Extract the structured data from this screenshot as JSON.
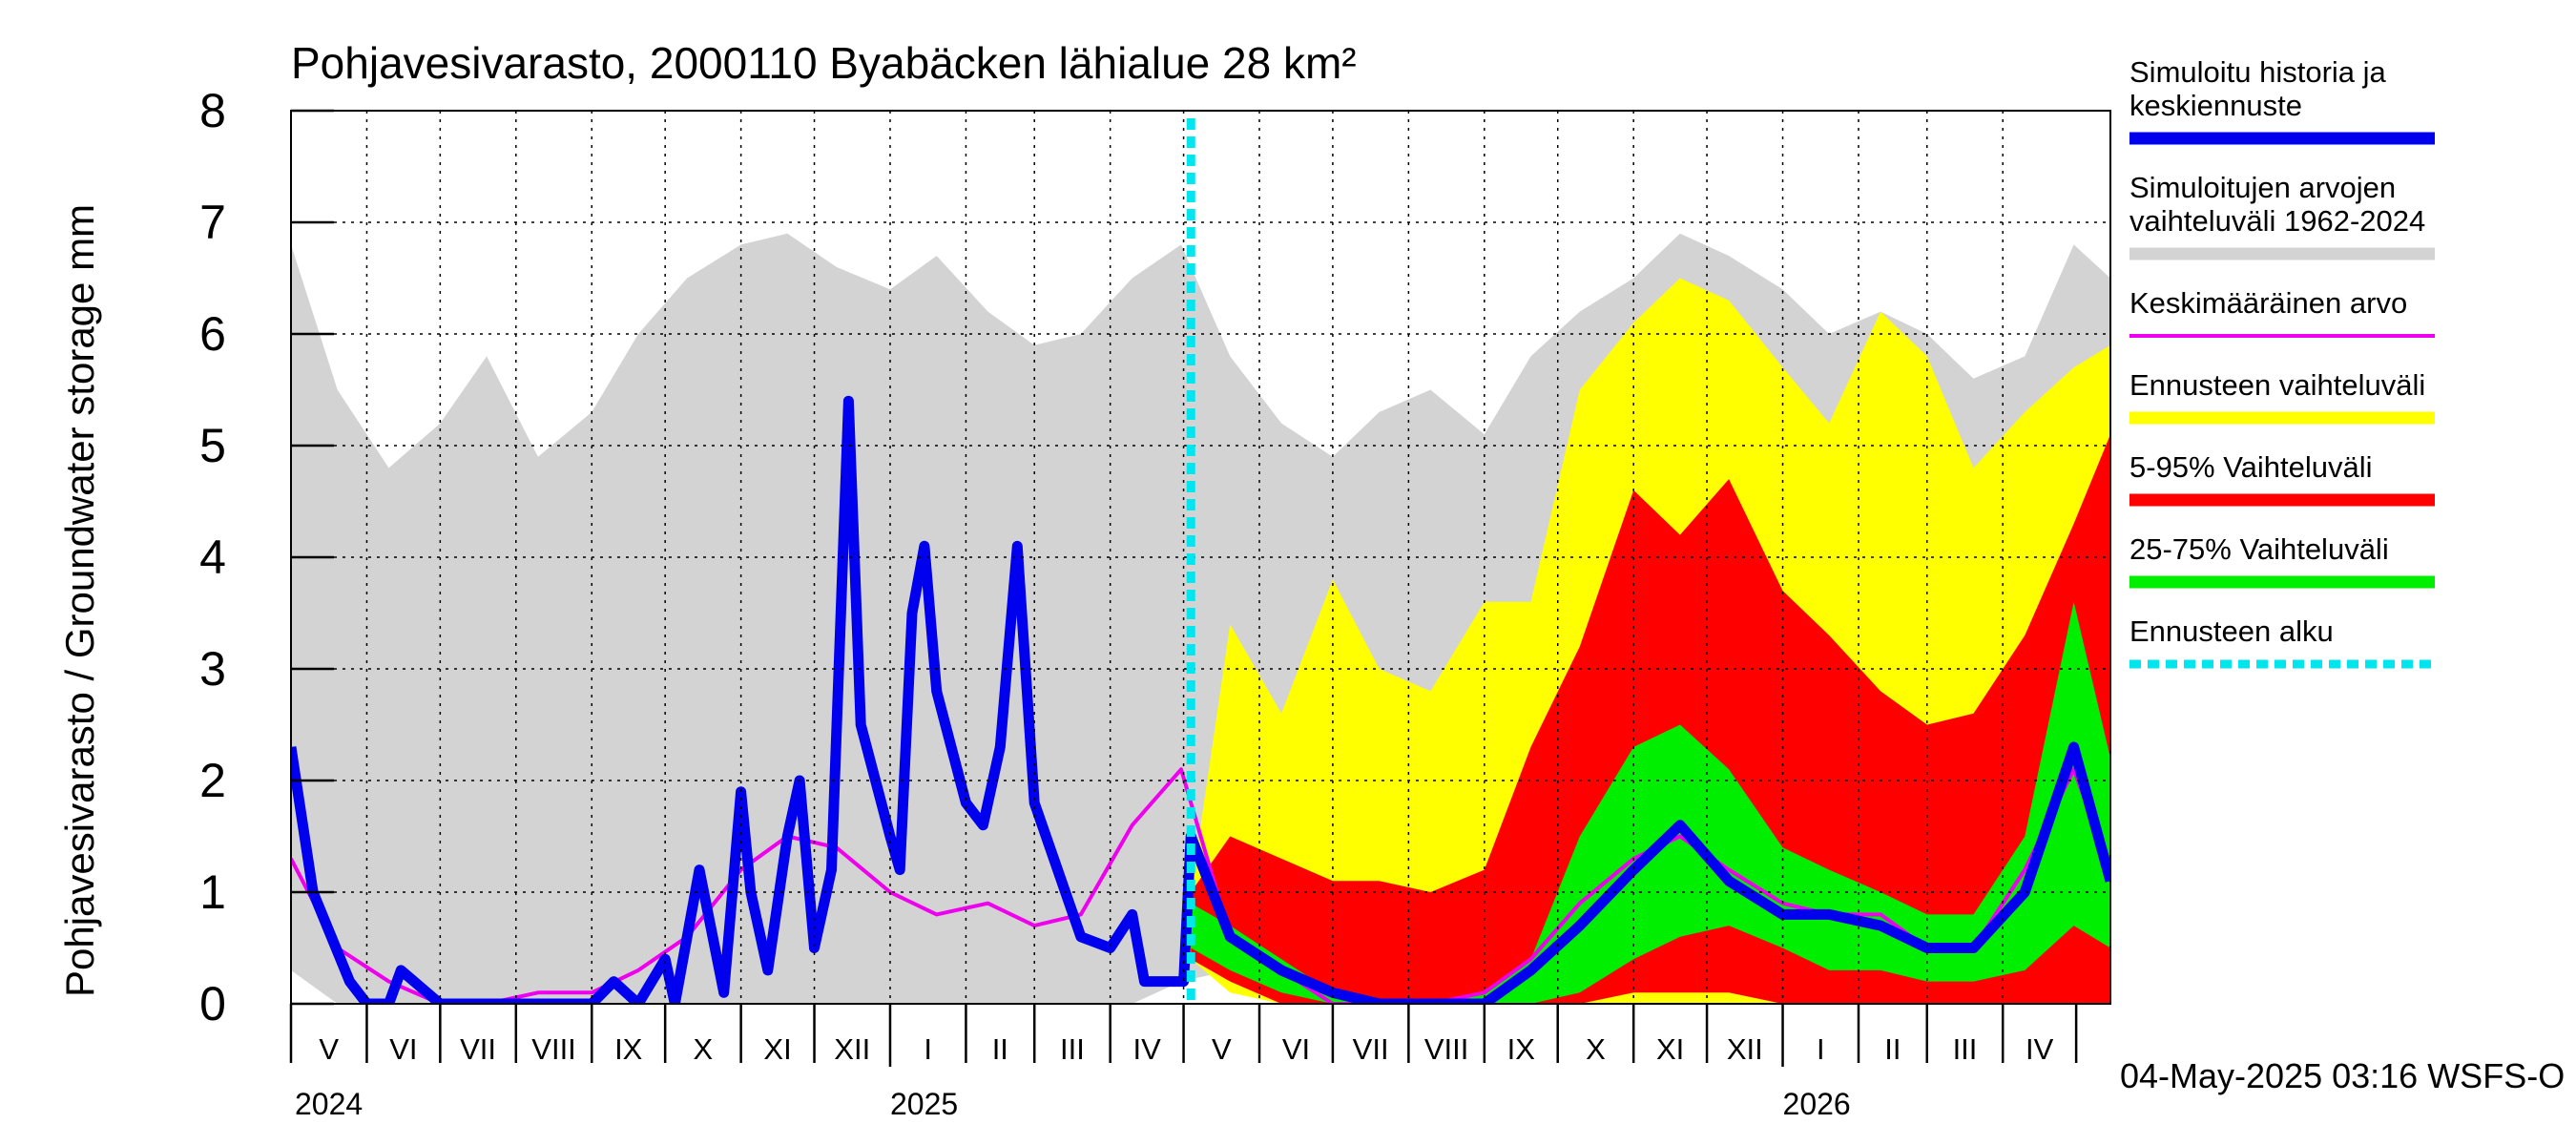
{
  "chart_data": {
    "type": "area",
    "title": "Pohjavesivarasto, 2000110 Byabäcken  lähialue 28 km²",
    "ylabel": "Pohjavesivarasto / Groundwater storage   mm",
    "xlabel": "",
    "ylim": [
      0,
      8
    ],
    "yticks": [
      "0",
      "1",
      "2",
      "3",
      "4",
      "5",
      "6",
      "7",
      "8"
    ],
    "x_start": "2024-05-01",
    "x_end": "2026-05-15",
    "forecast_start": "2025-05-04",
    "months": [
      "V",
      "VI",
      "VII",
      "VIII",
      "IX",
      "X",
      "XI",
      "XII",
      "I",
      "II",
      "III",
      "IV",
      "V",
      "VI",
      "VII",
      "VIII",
      "IX",
      "X",
      "XI",
      "XII",
      "I",
      "II",
      "III",
      "IV"
    ],
    "years": [
      "2024",
      "2025",
      "2026"
    ],
    "grid": true,
    "legend_position": "right",
    "legend": [
      {
        "label": "Simuloitu historia ja keskiennuste",
        "color": "#0000ee",
        "style": "thick"
      },
      {
        "label": "Simuloitujen arvojen vaihteluväli 1962-2024",
        "color": "#d3d3d3",
        "style": "thick"
      },
      {
        "label": "Keskimääräinen arvo",
        "color": "#ee00ee",
        "style": "thin"
      },
      {
        "label": "Ennusteen vaihteluväli",
        "color": "#ffff00",
        "style": "thick"
      },
      {
        "label": "5-95% Vaihteluväli",
        "color": "#ff0000",
        "style": "thick"
      },
      {
        "label": "25-75% Vaihteluväli",
        "color": "#00ee00",
        "style": "thick"
      },
      {
        "label": "Ennusteen alku",
        "color": "#00e5ee",
        "style": "dashed"
      }
    ],
    "footer": "04-May-2025 03:16 WSFS-O",
    "series": [
      {
        "name": "Simuloitujen arvojen vaihteluväli 1962-2024",
        "kind": "band",
        "color": "#d3d3d3",
        "x": [
          "2024-05-01",
          "2024-05-20",
          "2024-06-10",
          "2024-07-01",
          "2024-07-20",
          "2024-08-10",
          "2024-09-01",
          "2024-09-20",
          "2024-10-10",
          "2024-11-01",
          "2024-11-20",
          "2024-12-10",
          "2025-01-01",
          "2025-01-20",
          "2025-02-10",
          "2025-03-01",
          "2025-03-20",
          "2025-04-10",
          "2025-04-30",
          "2025-05-20",
          "2025-06-10",
          "2025-07-01",
          "2025-07-20",
          "2025-08-10",
          "2025-09-01",
          "2025-09-20",
          "2025-10-10",
          "2025-11-01",
          "2025-11-20",
          "2025-12-10",
          "2026-01-01",
          "2026-01-20",
          "2026-02-10",
          "2026-03-01",
          "2026-03-20",
          "2026-04-10",
          "2026-04-30",
          "2026-05-15"
        ],
        "low": [
          0.3,
          0.0,
          0.0,
          0.0,
          0.0,
          0.0,
          0.0,
          0.0,
          0.0,
          0.0,
          0.0,
          0.0,
          0.0,
          0.0,
          0.0,
          0.0,
          0.0,
          0.0,
          0.2,
          0.3,
          0.1,
          0.0,
          0.0,
          0.0,
          0.0,
          0.0,
          0.0,
          0.0,
          0.0,
          0.0,
          0.0,
          0.0,
          0.0,
          0.0,
          0.0,
          0.0,
          0.0,
          0.0
        ],
        "high": [
          6.8,
          5.5,
          4.8,
          5.2,
          5.8,
          4.9,
          5.3,
          6.0,
          6.5,
          6.8,
          6.9,
          6.6,
          6.4,
          6.7,
          6.2,
          5.9,
          6.0,
          6.5,
          6.8,
          5.8,
          5.2,
          4.9,
          5.3,
          5.5,
          5.1,
          5.8,
          6.2,
          6.5,
          6.9,
          6.7,
          6.4,
          6.0,
          6.2,
          6.0,
          5.6,
          5.8,
          6.8,
          6.5
        ]
      },
      {
        "name": "Ennusteen vaihteluväli",
        "kind": "band",
        "color": "#ffff00",
        "x": [
          "2025-05-04",
          "2025-05-20",
          "2025-06-10",
          "2025-07-01",
          "2025-07-20",
          "2025-08-10",
          "2025-09-01",
          "2025-09-20",
          "2025-10-10",
          "2025-11-01",
          "2025-11-20",
          "2025-12-10",
          "2026-01-01",
          "2026-01-20",
          "2026-02-10",
          "2026-03-01",
          "2026-03-20",
          "2026-04-10",
          "2026-04-30",
          "2026-05-15"
        ],
        "low": [
          0.4,
          0.1,
          0.0,
          0.0,
          0.0,
          0.0,
          0.0,
          0.0,
          0.0,
          0.0,
          0.0,
          0.0,
          0.0,
          0.0,
          0.0,
          0.0,
          0.0,
          0.0,
          0.0,
          0.0
        ],
        "high": [
          1.0,
          3.4,
          2.6,
          3.8,
          3.0,
          2.8,
          3.6,
          3.6,
          5.5,
          6.1,
          6.5,
          6.3,
          5.7,
          5.2,
          6.2,
          5.8,
          4.8,
          5.3,
          5.7,
          5.9
        ]
      },
      {
        "name": "5-95% Vaihteluväli",
        "kind": "band",
        "color": "#ff0000",
        "x": [
          "2025-05-04",
          "2025-05-20",
          "2025-06-10",
          "2025-07-01",
          "2025-07-20",
          "2025-08-10",
          "2025-09-01",
          "2025-09-20",
          "2025-10-10",
          "2025-11-01",
          "2025-11-20",
          "2025-12-10",
          "2026-01-01",
          "2026-01-20",
          "2026-02-10",
          "2026-03-01",
          "2026-03-20",
          "2026-04-10",
          "2026-04-30",
          "2026-05-15"
        ],
        "low": [
          0.4,
          0.2,
          0.0,
          0.0,
          0.0,
          0.0,
          0.0,
          0.0,
          0.0,
          0.1,
          0.1,
          0.1,
          0.0,
          0.0,
          0.0,
          0.0,
          0.0,
          0.0,
          0.0,
          0.0
        ],
        "high": [
          1.0,
          1.5,
          1.3,
          1.1,
          1.1,
          1.0,
          1.2,
          2.3,
          3.2,
          4.6,
          4.2,
          4.7,
          3.7,
          3.3,
          2.8,
          2.5,
          2.6,
          3.3,
          4.3,
          5.1
        ]
      },
      {
        "name": "25-75% Vaihteluväli",
        "kind": "band",
        "color": "#00ee00",
        "x": [
          "2025-05-04",
          "2025-05-20",
          "2025-06-10",
          "2025-07-01",
          "2025-07-20",
          "2025-08-10",
          "2025-09-01",
          "2025-09-20",
          "2025-10-10",
          "2025-11-01",
          "2025-11-20",
          "2025-12-10",
          "2026-01-01",
          "2026-01-20",
          "2026-02-10",
          "2026-03-01",
          "2026-03-20",
          "2026-04-10",
          "2026-04-30",
          "2026-05-15"
        ],
        "low": [
          0.5,
          0.3,
          0.1,
          0.0,
          0.0,
          0.0,
          0.0,
          0.0,
          0.1,
          0.4,
          0.6,
          0.7,
          0.5,
          0.3,
          0.3,
          0.2,
          0.2,
          0.3,
          0.7,
          0.5
        ],
        "high": [
          0.9,
          0.7,
          0.4,
          0.1,
          0.0,
          0.0,
          0.1,
          0.4,
          1.5,
          2.3,
          2.5,
          2.1,
          1.4,
          1.2,
          1.0,
          0.8,
          0.8,
          1.5,
          3.6,
          2.2
        ]
      },
      {
        "name": "Keskimääräinen arvo",
        "kind": "line",
        "color": "#ee00ee",
        "x": [
          "2024-05-01",
          "2024-05-20",
          "2024-06-10",
          "2024-07-01",
          "2024-07-20",
          "2024-08-10",
          "2024-09-01",
          "2024-09-20",
          "2024-10-10",
          "2024-11-01",
          "2024-11-20",
          "2024-12-10",
          "2025-01-01",
          "2025-01-20",
          "2025-02-10",
          "2025-03-01",
          "2025-03-20",
          "2025-04-10",
          "2025-04-30",
          "2025-05-20",
          "2025-06-10",
          "2025-07-01",
          "2025-07-20",
          "2025-08-10",
          "2025-09-01",
          "2025-09-20",
          "2025-10-10",
          "2025-11-01",
          "2025-11-20",
          "2025-12-10",
          "2026-01-01",
          "2026-01-20",
          "2026-02-10",
          "2026-03-01",
          "2026-03-20",
          "2026-04-10",
          "2026-04-30",
          "2026-05-15"
        ],
        "values": [
          1.3,
          0.5,
          0.2,
          0.0,
          0.0,
          0.1,
          0.1,
          0.3,
          0.6,
          1.2,
          1.5,
          1.4,
          1.0,
          0.8,
          0.9,
          0.7,
          0.8,
          1.6,
          2.1,
          0.6,
          0.3,
          0.0,
          0.0,
          0.0,
          0.1,
          0.4,
          0.9,
          1.3,
          1.5,
          1.2,
          0.9,
          0.8,
          0.8,
          0.5,
          0.5,
          1.2,
          2.1,
          1.2
        ]
      },
      {
        "name": "Simuloitu historia ja keskiennuste",
        "kind": "line",
        "color": "#0000ee",
        "x": [
          "2024-05-01",
          "2024-05-10",
          "2024-05-25",
          "2024-06-01",
          "2024-06-10",
          "2024-06-15",
          "2024-07-01",
          "2024-07-20",
          "2024-08-10",
          "2024-09-01",
          "2024-09-10",
          "2024-09-20",
          "2024-10-01",
          "2024-10-05",
          "2024-10-15",
          "2024-10-25",
          "2024-11-01",
          "2024-11-05",
          "2024-11-12",
          "2024-11-20",
          "2024-11-25",
          "2024-12-01",
          "2024-12-08",
          "2024-12-15",
          "2024-12-20",
          "2025-01-01",
          "2025-01-05",
          "2025-01-10",
          "2025-01-15",
          "2025-01-20",
          "2025-02-01",
          "2025-02-08",
          "2025-02-15",
          "2025-02-22",
          "2025-03-01",
          "2025-03-20",
          "2025-04-01",
          "2025-04-10",
          "2025-04-15",
          "2025-04-20",
          "2025-05-01",
          "2025-05-04",
          "2025-05-20",
          "2025-06-10",
          "2025-07-01",
          "2025-07-20",
          "2025-08-10",
          "2025-09-01",
          "2025-09-20",
          "2025-10-10",
          "2025-11-01",
          "2025-11-20",
          "2025-12-10",
          "2026-01-01",
          "2026-01-20",
          "2026-02-10",
          "2026-03-01",
          "2026-03-20",
          "2026-04-10",
          "2026-04-30",
          "2026-05-15"
        ],
        "values": [
          2.3,
          1.0,
          0.2,
          0.0,
          0.0,
          0.3,
          0.0,
          0.0,
          0.0,
          0.0,
          0.2,
          0.0,
          0.4,
          0.0,
          1.2,
          0.1,
          1.9,
          1.0,
          0.3,
          1.5,
          2.0,
          0.5,
          1.2,
          5.4,
          2.5,
          1.5,
          1.2,
          3.5,
          4.1,
          2.8,
          1.8,
          1.6,
          2.3,
          4.1,
          1.8,
          0.6,
          0.5,
          0.8,
          0.2,
          0.2,
          0.2,
          1.5,
          0.6,
          0.3,
          0.1,
          0.0,
          0.0,
          0.0,
          0.3,
          0.7,
          1.2,
          1.6,
          1.1,
          0.8,
          0.8,
          0.7,
          0.5,
          0.5,
          1.0,
          2.3,
          1.1
        ]
      }
    ]
  }
}
